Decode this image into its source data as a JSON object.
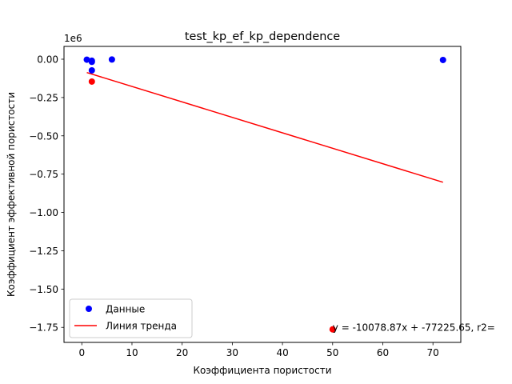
{
  "chart_data": {
    "type": "scatter",
    "title": "test_kp_ef_kp_dependence",
    "xlabel": "Коэффициента пористости",
    "ylabel": "Коэффициент эффективной пористости",
    "y_offset_label": "1e6",
    "xlim": [
      -3.55,
      75.55
    ],
    "ylim": [
      -1.848,
      0.0835
    ],
    "x_ticks": [
      0,
      10,
      20,
      30,
      40,
      50,
      60,
      70
    ],
    "x_tick_labels": [
      "0",
      "10",
      "20",
      "30",
      "40",
      "50",
      "60",
      "70"
    ],
    "y_ticks": [
      0.0,
      -0.25,
      -0.5,
      -0.75,
      -1.0,
      -1.25,
      -1.5,
      -1.75
    ],
    "y_tick_labels": [
      "0.00",
      "−0.25",
      "−0.50",
      "−0.75",
      "−1.00",
      "−1.25",
      "−1.50",
      "−1.75"
    ],
    "grid": false,
    "legend_position": "lower-left",
    "series": [
      {
        "name": "Данные",
        "kind": "points",
        "color": "#0000ff",
        "points": [
          [
            1,
            -0.003
          ],
          [
            2,
            -0.01
          ],
          [
            2,
            -0.017
          ],
          [
            2,
            -0.073
          ],
          [
            6,
            -0.002
          ],
          [
            72,
            -0.005
          ]
        ]
      },
      {
        "name": "Линия тренда",
        "kind": "line",
        "color": "#ff0000",
        "points": [
          [
            1,
            -0.087
          ],
          [
            72,
            -0.803
          ]
        ]
      },
      {
        "name": "",
        "kind": "points",
        "color": "#ff0000",
        "points": [
          [
            2,
            -0.146
          ],
          [
            50,
            -1.763
          ]
        ]
      }
    ],
    "annotations": [
      {
        "text": "y = -10078.87x + -77225.65, r2=",
        "x": 50,
        "y": -1.75
      }
    ]
  }
}
